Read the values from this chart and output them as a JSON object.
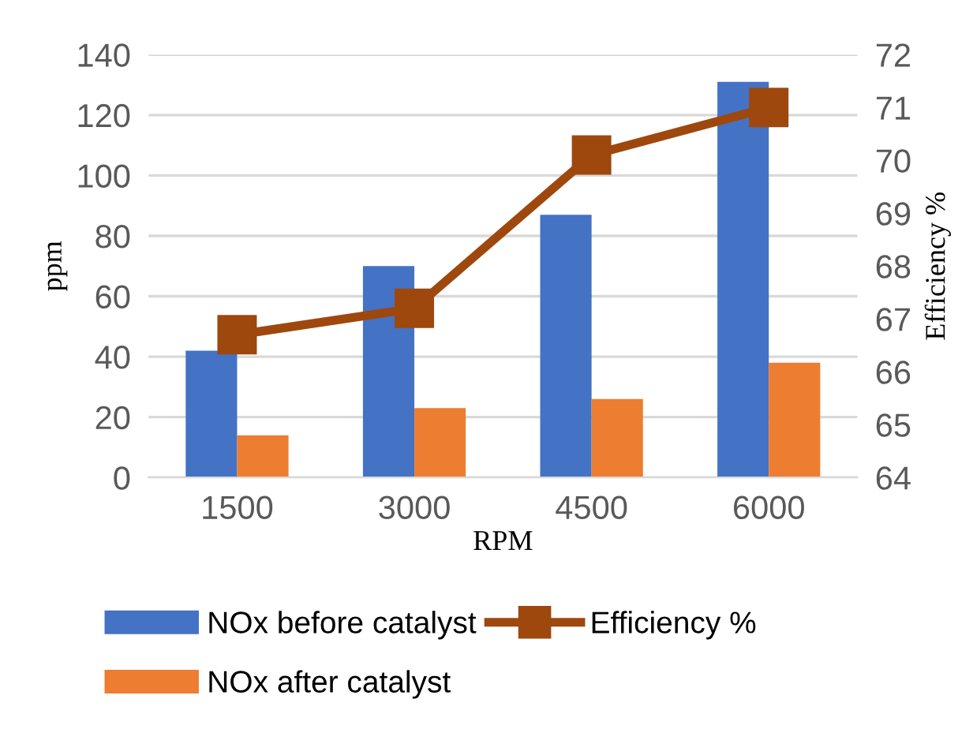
{
  "chart_data": {
    "type": "bar",
    "categories": [
      "1500",
      "3000",
      "4500",
      "6000"
    ],
    "series": [
      {
        "name": "NOx before catalyst",
        "color": "#4472c4",
        "values": [
          42,
          70,
          87,
          131
        ]
      },
      {
        "name": "NOx after catalyst",
        "color": "#ed7d31",
        "values": [
          14,
          23,
          26,
          38
        ]
      },
      {
        "name": "Efficiency %",
        "type": "line",
        "axis": "y2",
        "color": "#9e480e",
        "values": [
          66.7,
          67.2,
          70.1,
          71.0
        ],
        "marker": "square"
      }
    ],
    "xlabel": "RPM",
    "ylabel": "ppm",
    "y2label": "Efficiency %",
    "ylim": [
      0,
      140
    ],
    "yticks": [
      0,
      20,
      40,
      60,
      80,
      100,
      120,
      140
    ],
    "y2lim": [
      64,
      72
    ],
    "y2ticks": [
      64,
      65,
      66,
      67,
      68,
      69,
      70,
      71,
      72
    ],
    "grid": "y",
    "legend": "bottom"
  }
}
